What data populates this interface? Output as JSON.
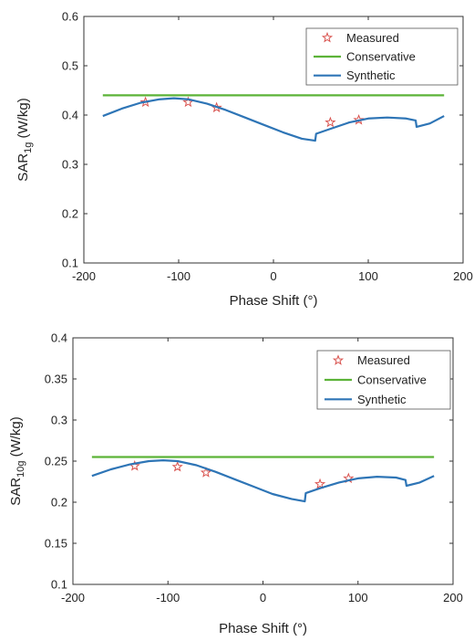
{
  "chart_data": [
    {
      "type": "line",
      "xlabel": "Phase Shift (°)",
      "ylabel": {
        "main": "SAR",
        "sub": "1g",
        "unit": " (W/kg)"
      },
      "xlim": [
        -200,
        200
      ],
      "ylim": [
        0.1,
        0.6
      ],
      "xticks": [
        -200,
        -100,
        0,
        100,
        200
      ],
      "yticks": [
        0.1,
        0.2,
        0.3,
        0.4,
        0.5,
        0.6
      ],
      "ytick_labels": [
        "0.1",
        "0.2",
        "0.3",
        "0.4",
        "0.5",
        "0.6"
      ],
      "grid": false,
      "legend_position": "top-right",
      "series": [
        {
          "name": "Measured",
          "style": "markers",
          "marker": "star",
          "color": "#d9534f",
          "x": [
            -135,
            -90,
            -60,
            60,
            90
          ],
          "y": [
            0.426,
            0.426,
            0.415,
            0.385,
            0.39
          ]
        },
        {
          "name": "Conservative",
          "style": "line",
          "color": "#5cb338",
          "x": [
            -180,
            180
          ],
          "y": [
            0.44,
            0.44
          ]
        },
        {
          "name": "Synthetic",
          "style": "line",
          "color": "#2e75b6",
          "x": [
            -180,
            -160,
            -140,
            -120,
            -105,
            -90,
            -70,
            -50,
            -30,
            -10,
            10,
            30,
            44,
            45,
            60,
            80,
            100,
            120,
            140,
            150,
            151,
            165,
            180
          ],
          "y": [
            0.398,
            0.413,
            0.425,
            0.432,
            0.434,
            0.432,
            0.423,
            0.41,
            0.395,
            0.38,
            0.365,
            0.352,
            0.348,
            0.362,
            0.372,
            0.385,
            0.393,
            0.395,
            0.393,
            0.389,
            0.376,
            0.383,
            0.398
          ]
        }
      ]
    },
    {
      "type": "line",
      "xlabel": "Phase Shift (°)",
      "ylabel": {
        "main": "SAR",
        "sub": "10g",
        "unit": " (W/kg)"
      },
      "xlim": [
        -200,
        200
      ],
      "ylim": [
        0.1,
        0.4
      ],
      "xticks": [
        -200,
        -100,
        0,
        100,
        200
      ],
      "yticks": [
        0.1,
        0.15,
        0.2,
        0.25,
        0.3,
        0.35,
        0.4
      ],
      "ytick_labels": [
        "0.1",
        "0.15",
        "0.2",
        "0.25",
        "0.3",
        "0.35",
        "0.4"
      ],
      "grid": false,
      "legend_position": "top-right",
      "series": [
        {
          "name": "Measured",
          "style": "markers",
          "marker": "star",
          "color": "#d9534f",
          "x": [
            -135,
            -90,
            -60,
            60,
            90
          ],
          "y": [
            0.244,
            0.243,
            0.236,
            0.222,
            0.229
          ]
        },
        {
          "name": "Conservative",
          "style": "line",
          "color": "#5cb338",
          "x": [
            -180,
            180
          ],
          "y": [
            0.255,
            0.255
          ]
        },
        {
          "name": "Synthetic",
          "style": "line",
          "color": "#2e75b6",
          "x": [
            -180,
            -160,
            -140,
            -120,
            -105,
            -90,
            -70,
            -50,
            -30,
            -10,
            10,
            30,
            44,
            45,
            60,
            80,
            100,
            120,
            140,
            150,
            151,
            165,
            180
          ],
          "y": [
            0.232,
            0.24,
            0.246,
            0.25,
            0.251,
            0.25,
            0.245,
            0.237,
            0.228,
            0.219,
            0.21,
            0.204,
            0.201,
            0.211,
            0.217,
            0.224,
            0.229,
            0.231,
            0.23,
            0.227,
            0.22,
            0.224,
            0.232
          ]
        }
      ]
    }
  ]
}
